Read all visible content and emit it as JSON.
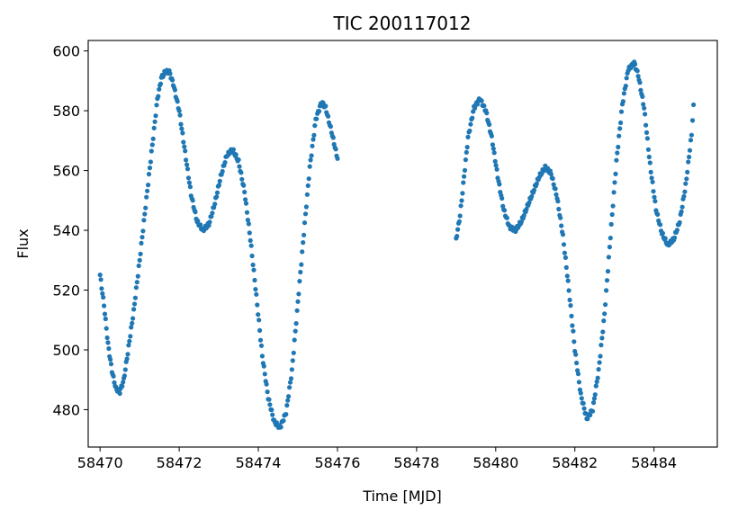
{
  "chart_data": {
    "type": "scatter",
    "title": "TIC 200117012",
    "xlabel": "Time [MJD]",
    "ylabel": "Flux",
    "xlim": [
      58469.7,
      58485.6
    ],
    "ylim": [
      467.5,
      603.5
    ],
    "x_ticks": [
      58470,
      58472,
      58474,
      58476,
      58478,
      58480,
      58482,
      58484
    ],
    "y_ticks": [
      480,
      500,
      520,
      540,
      560,
      580,
      600
    ],
    "grid": false,
    "legend": "none",
    "color": "#1f77b4",
    "knots": [
      [
        [
          58470.0,
          525
        ],
        [
          58470.1,
          515
        ],
        [
          58470.2,
          502
        ],
        [
          58470.3,
          493
        ],
        [
          58470.4,
          487
        ],
        [
          58470.5,
          486
        ],
        [
          58470.6,
          490
        ],
        [
          58470.7,
          499
        ],
        [
          58470.85,
          513
        ],
        [
          58471.0,
          530
        ],
        [
          58471.15,
          548
        ],
        [
          58471.3,
          566
        ],
        [
          58471.45,
          584
        ],
        [
          58471.55,
          591
        ],
        [
          58471.65,
          593
        ],
        [
          58471.75,
          593
        ],
        [
          58471.85,
          589
        ],
        [
          58472.0,
          580
        ],
        [
          58472.15,
          566
        ],
        [
          58472.3,
          552
        ],
        [
          58472.45,
          543
        ],
        [
          58472.6,
          540
        ],
        [
          58472.75,
          542
        ],
        [
          58472.9,
          549
        ],
        [
          58473.05,
          558
        ],
        [
          58473.2,
          565
        ],
        [
          58473.35,
          567
        ],
        [
          58473.5,
          563
        ],
        [
          58473.65,
          553
        ],
        [
          58473.8,
          537
        ],
        [
          58473.95,
          518
        ],
        [
          58474.1,
          498
        ],
        [
          58474.25,
          484
        ],
        [
          58474.4,
          476
        ],
        [
          58474.55,
          474
        ],
        [
          58474.7,
          479
        ],
        [
          58474.85,
          493
        ],
        [
          58475.0,
          516
        ],
        [
          58475.15,
          539
        ],
        [
          58475.3,
          561
        ],
        [
          58475.45,
          577
        ],
        [
          58475.6,
          583
        ],
        [
          58475.7,
          581
        ],
        [
          58475.85,
          573
        ],
        [
          58476.0,
          564
        ]
      ],
      [
        [
          58479.0,
          537
        ],
        [
          58479.1,
          545
        ],
        [
          58479.2,
          558
        ],
        [
          58479.3,
          571
        ],
        [
          58479.45,
          581
        ],
        [
          58479.6,
          584
        ],
        [
          58479.75,
          580
        ],
        [
          58479.9,
          571
        ],
        [
          58480.05,
          558
        ],
        [
          58480.2,
          547
        ],
        [
          58480.35,
          541
        ],
        [
          58480.5,
          540
        ],
        [
          58480.65,
          543
        ],
        [
          58480.8,
          548
        ],
        [
          58480.95,
          553
        ],
        [
          58481.1,
          558
        ],
        [
          58481.25,
          561
        ],
        [
          58481.4,
          559
        ],
        [
          58481.55,
          551
        ],
        [
          58481.7,
          538
        ],
        [
          58481.85,
          520
        ],
        [
          58482.0,
          500
        ],
        [
          58482.15,
          485
        ],
        [
          58482.3,
          477
        ],
        [
          58482.45,
          480
        ],
        [
          58482.6,
          493
        ],
        [
          58482.75,
          512
        ],
        [
          58482.9,
          538
        ],
        [
          58483.05,
          563
        ],
        [
          58483.2,
          582
        ],
        [
          58483.35,
          594
        ],
        [
          58483.5,
          596
        ],
        [
          58483.6,
          592
        ],
        [
          58483.75,
          581
        ],
        [
          58483.9,
          562
        ],
        [
          58484.05,
          547
        ],
        [
          58484.2,
          539
        ],
        [
          58484.35,
          535
        ],
        [
          58484.5,
          537
        ],
        [
          58484.65,
          543
        ],
        [
          58484.8,
          555
        ],
        [
          58484.95,
          572
        ],
        [
          58485.0,
          582
        ]
      ]
    ]
  }
}
